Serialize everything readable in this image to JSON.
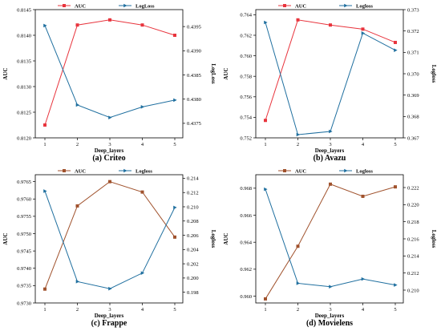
{
  "chart_data": [
    {
      "type": "line",
      "caption": "(a)  Criteo",
      "xlabel": "Deep_layers",
      "ylabel": "AUC",
      "y2label": "LogLoss",
      "x": [
        1,
        2,
        3,
        4,
        5
      ],
      "ylim": [
        0.812,
        0.8145
      ],
      "yticks": [
        0.812,
        0.8125,
        0.813,
        0.8135,
        0.814,
        0.8145
      ],
      "yticklabels": [
        "0.8120",
        "0.8125",
        "0.8130",
        "0.8135",
        "0.8140",
        "0.8145"
      ],
      "y2lim": [
        0.4372,
        0.43985
      ],
      "y2ticks": [
        0.4375,
        0.438,
        0.4385,
        0.439,
        0.4395
      ],
      "y2ticklabels": [
        "0.4375",
        "0.4380",
        "0.4385",
        "0.4390",
        "0.4395"
      ],
      "legend_position": "top",
      "series": [
        {
          "name": "AUC",
          "axis": "left",
          "color": "#e8343d",
          "marker": "square",
          "values": [
            0.81225,
            0.8142,
            0.8143,
            0.8142,
            0.814
          ]
        },
        {
          "name": "LogLoss",
          "axis": "right",
          "color": "#1f6f9f",
          "marker": "triangle",
          "values": [
            0.43952,
            0.43788,
            0.43762,
            0.43784,
            0.43798
          ]
        }
      ]
    },
    {
      "type": "line",
      "caption": "(b)  Avazu",
      "xlabel": "Deep_layers",
      "ylabel": "AUC",
      "y2label": "Logloss",
      "x": [
        1,
        2,
        3,
        4,
        5
      ],
      "ylim": [
        0.752,
        0.7645
      ],
      "yticks": [
        0.752,
        0.754,
        0.756,
        0.758,
        0.76,
        0.762,
        0.764
      ],
      "yticklabels": [
        "0.752",
        "0.754",
        "0.756",
        "0.758",
        "0.760",
        "0.762",
        "0.764"
      ],
      "y2lim": [
        0.367,
        0.373
      ],
      "y2ticks": [
        0.367,
        0.368,
        0.369,
        0.37,
        0.371,
        0.372,
        0.373
      ],
      "y2ticklabels": [
        "0.367",
        "0.368",
        "0.369",
        "0.370",
        "0.371",
        "0.372",
        "0.373"
      ],
      "legend_position": "top",
      "series": [
        {
          "name": "AUC",
          "axis": "left",
          "color": "#e8343d",
          "marker": "square",
          "values": [
            0.7537,
            0.7635,
            0.763,
            0.7626,
            0.7613
          ]
        },
        {
          "name": "Logloss",
          "axis": "right",
          "color": "#1f6f9f",
          "marker": "triangle",
          "values": [
            0.3724,
            0.36715,
            0.3673,
            0.3719,
            0.3711
          ]
        }
      ]
    },
    {
      "type": "line",
      "caption": "(c)  Frappe",
      "xlabel": "Deep_layers",
      "ylabel": "AUC",
      "y2label": "Logloss",
      "x": [
        1,
        2,
        3,
        4,
        5
      ],
      "ylim": [
        0.973,
        0.9767
      ],
      "yticks": [
        0.973,
        0.9735,
        0.974,
        0.9745,
        0.975,
        0.9755,
        0.976,
        0.9765
      ],
      "yticklabels": [
        "0.9730",
        "0.9735",
        "0.9740",
        "0.9745",
        "0.9750",
        "0.9755",
        "0.9760",
        "0.9765"
      ],
      "y2lim": [
        0.1965,
        0.2145
      ],
      "y2ticks": [
        0.198,
        0.2,
        0.202,
        0.204,
        0.206,
        0.208,
        0.21,
        0.212,
        0.214
      ],
      "y2ticklabels": [
        "0.198",
        "0.200",
        "0.202",
        "0.204",
        "0.206",
        "0.208",
        "0.210",
        "0.212",
        "0.214"
      ],
      "legend_position": "top",
      "series": [
        {
          "name": "AUC",
          "axis": "left",
          "color": "#a0522d",
          "marker": "square",
          "values": [
            0.9734,
            0.9758,
            0.9765,
            0.9762,
            0.9749
          ]
        },
        {
          "name": "Logloss",
          "axis": "right",
          "color": "#1f6f9f",
          "marker": "triangle",
          "values": [
            0.2122,
            0.1995,
            0.1985,
            0.2007,
            0.2099
          ]
        }
      ]
    },
    {
      "type": "line",
      "caption": "(d)  Movielens",
      "xlabel": "Deep_layers",
      "ylabel": "AUC",
      "y2label": "Logloss",
      "x": [
        1,
        2,
        3,
        4,
        5
      ],
      "ylim": [
        0.9595,
        0.969
      ],
      "yticks": [
        0.96,
        0.962,
        0.964,
        0.966,
        0.968
      ],
      "yticklabels": [
        "0.960",
        "0.962",
        "0.964",
        "0.966",
        "0.968"
      ],
      "y2lim": [
        0.2085,
        0.2235
      ],
      "y2ticks": [
        0.21,
        0.212,
        0.214,
        0.216,
        0.218,
        0.22,
        0.222
      ],
      "y2ticklabels": [
        "0.210",
        "0.212",
        "0.214",
        "0.216",
        "0.218",
        "0.220",
        "0.222"
      ],
      "legend_position": "top",
      "series": [
        {
          "name": "AUC",
          "axis": "left",
          "color": "#a0522d",
          "marker": "square",
          "values": [
            0.9598,
            0.9637,
            0.9683,
            0.9674,
            0.9681
          ]
        },
        {
          "name": "Logloss",
          "axis": "right",
          "color": "#1f6f9f",
          "marker": "triangle",
          "values": [
            0.2218,
            0.2108,
            0.2104,
            0.2113,
            0.2106
          ]
        }
      ]
    }
  ]
}
